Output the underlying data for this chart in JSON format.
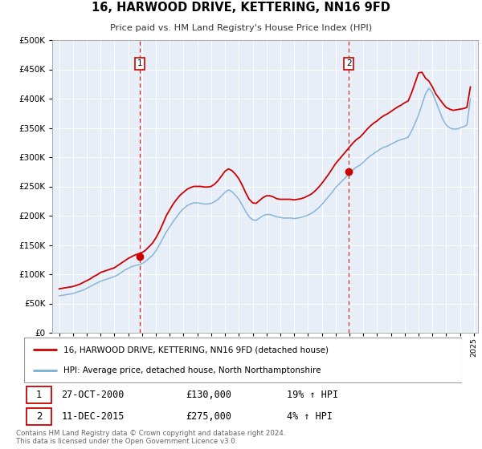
{
  "title": "16, HARWOOD DRIVE, KETTERING, NN16 9FD",
  "subtitle": "Price paid vs. HM Land Registry's House Price Index (HPI)",
  "plot_bg_color": "#e8eef8",
  "red_color": "#cc0000",
  "blue_color": "#7bafd4",
  "legend_label_red": "16, HARWOOD DRIVE, KETTERING, NN16 9FD (detached house)",
  "legend_label_blue": "HPI: Average price, detached house, North Northamptonshire",
  "transaction1_date": "27-OCT-2000",
  "transaction1_price": "£130,000",
  "transaction1_hpi": "19% ↑ HPI",
  "transaction1_year": 2000.83,
  "transaction1_value": 130000,
  "transaction2_date": "11-DEC-2015",
  "transaction2_price": "£275,000",
  "transaction2_hpi": "4% ↑ HPI",
  "transaction2_year": 2015.95,
  "transaction2_value": 275000,
  "footer_line1": "Contains HM Land Registry data © Crown copyright and database right 2024.",
  "footer_line2": "This data is licensed under the Open Government Licence v3.0.",
  "ylim": [
    0,
    500000
  ],
  "yticks": [
    0,
    50000,
    100000,
    150000,
    200000,
    250000,
    300000,
    350000,
    400000,
    450000,
    500000
  ],
  "xlim_start": 1994.5,
  "xlim_end": 2025.3,
  "hpi_data_x": [
    1995.0,
    1995.25,
    1995.5,
    1995.75,
    1996.0,
    1996.25,
    1996.5,
    1996.75,
    1997.0,
    1997.25,
    1997.5,
    1997.75,
    1998.0,
    1998.25,
    1998.5,
    1998.75,
    1999.0,
    1999.25,
    1999.5,
    1999.75,
    2000.0,
    2000.25,
    2000.5,
    2000.75,
    2001.0,
    2001.25,
    2001.5,
    2001.75,
    2002.0,
    2002.25,
    2002.5,
    2002.75,
    2003.0,
    2003.25,
    2003.5,
    2003.75,
    2004.0,
    2004.25,
    2004.5,
    2004.75,
    2005.0,
    2005.25,
    2005.5,
    2005.75,
    2006.0,
    2006.25,
    2006.5,
    2006.75,
    2007.0,
    2007.25,
    2007.5,
    2007.75,
    2008.0,
    2008.25,
    2008.5,
    2008.75,
    2009.0,
    2009.25,
    2009.5,
    2009.75,
    2010.0,
    2010.25,
    2010.5,
    2010.75,
    2011.0,
    2011.25,
    2011.5,
    2011.75,
    2012.0,
    2012.25,
    2012.5,
    2012.75,
    2013.0,
    2013.25,
    2013.5,
    2013.75,
    2014.0,
    2014.25,
    2014.5,
    2014.75,
    2015.0,
    2015.25,
    2015.5,
    2015.75,
    2016.0,
    2016.25,
    2016.5,
    2016.75,
    2017.0,
    2017.25,
    2017.5,
    2017.75,
    2018.0,
    2018.25,
    2018.5,
    2018.75,
    2019.0,
    2019.25,
    2019.5,
    2019.75,
    2020.0,
    2020.25,
    2020.5,
    2020.75,
    2021.0,
    2021.25,
    2021.5,
    2021.75,
    2022.0,
    2022.25,
    2022.5,
    2022.75,
    2023.0,
    2023.25,
    2023.5,
    2023.75,
    2024.0,
    2024.25,
    2024.5,
    2024.75
  ],
  "hpi_data_y": [
    63000,
    64000,
    65000,
    66000,
    67000,
    69000,
    71000,
    73000,
    76000,
    79000,
    82000,
    85000,
    88000,
    90000,
    92000,
    94000,
    96000,
    99000,
    103000,
    107000,
    110000,
    113000,
    115000,
    116000,
    118000,
    122000,
    127000,
    132000,
    140000,
    150000,
    161000,
    172000,
    181000,
    190000,
    198000,
    206000,
    212000,
    217000,
    220000,
    222000,
    222000,
    221000,
    220000,
    220000,
    221000,
    224000,
    228000,
    234000,
    240000,
    244000,
    241000,
    235000,
    228000,
    218000,
    207000,
    198000,
    193000,
    192000,
    196000,
    200000,
    202000,
    202000,
    200000,
    198000,
    197000,
    196000,
    196000,
    196000,
    195000,
    196000,
    197000,
    199000,
    201000,
    204000,
    208000,
    213000,
    219000,
    226000,
    233000,
    240000,
    248000,
    254000,
    260000,
    266000,
    272000,
    278000,
    283000,
    286000,
    291000,
    297000,
    302000,
    306000,
    310000,
    314000,
    317000,
    319000,
    322000,
    325000,
    328000,
    330000,
    332000,
    334000,
    345000,
    358000,
    372000,
    390000,
    408000,
    418000,
    410000,
    395000,
    380000,
    365000,
    355000,
    350000,
    348000,
    348000,
    350000,
    352000,
    355000,
    400000
  ],
  "red_data_x": [
    1995.0,
    1995.25,
    1995.5,
    1995.75,
    1996.0,
    1996.25,
    1996.5,
    1996.75,
    1997.0,
    1997.25,
    1997.5,
    1997.75,
    1998.0,
    1998.25,
    1998.5,
    1998.75,
    1999.0,
    1999.25,
    1999.5,
    1999.75,
    2000.0,
    2000.25,
    2000.5,
    2000.75,
    2001.0,
    2001.25,
    2001.5,
    2001.75,
    2002.0,
    2002.25,
    2002.5,
    2002.75,
    2003.0,
    2003.25,
    2003.5,
    2003.75,
    2004.0,
    2004.25,
    2004.5,
    2004.75,
    2005.0,
    2005.25,
    2005.5,
    2005.75,
    2006.0,
    2006.25,
    2006.5,
    2006.75,
    2007.0,
    2007.25,
    2007.5,
    2007.75,
    2008.0,
    2008.25,
    2008.5,
    2008.75,
    2009.0,
    2009.25,
    2009.5,
    2009.75,
    2010.0,
    2010.25,
    2010.5,
    2010.75,
    2011.0,
    2011.25,
    2011.5,
    2011.75,
    2012.0,
    2012.25,
    2012.5,
    2012.75,
    2013.0,
    2013.25,
    2013.5,
    2013.75,
    2014.0,
    2014.25,
    2014.5,
    2014.75,
    2015.0,
    2015.25,
    2015.5,
    2015.75,
    2016.0,
    2016.25,
    2016.5,
    2016.75,
    2017.0,
    2017.25,
    2017.5,
    2017.75,
    2018.0,
    2018.25,
    2018.5,
    2018.75,
    2019.0,
    2019.25,
    2019.5,
    2019.75,
    2020.0,
    2020.25,
    2020.5,
    2020.75,
    2021.0,
    2021.25,
    2021.5,
    2021.75,
    2022.0,
    2022.25,
    2022.5,
    2022.75,
    2023.0,
    2023.25,
    2023.5,
    2023.75,
    2024.0,
    2024.25,
    2024.5,
    2024.75
  ],
  "red_data_y": [
    75000,
    76000,
    77000,
    78000,
    79000,
    81000,
    83000,
    86000,
    89000,
    92000,
    96000,
    99000,
    103000,
    105000,
    107000,
    109000,
    111000,
    115000,
    119000,
    123000,
    127000,
    130000,
    133000,
    135000,
    137000,
    141000,
    147000,
    153000,
    162000,
    173000,
    186000,
    200000,
    210000,
    220000,
    228000,
    235000,
    240000,
    245000,
    248000,
    250000,
    250000,
    250000,
    249000,
    249000,
    250000,
    254000,
    260000,
    268000,
    276000,
    280000,
    277000,
    271000,
    263000,
    252000,
    239000,
    228000,
    222000,
    221000,
    226000,
    231000,
    234000,
    234000,
    232000,
    229000,
    228000,
    228000,
    228000,
    228000,
    227000,
    228000,
    229000,
    231000,
    234000,
    237000,
    242000,
    248000,
    255000,
    263000,
    271000,
    280000,
    289000,
    296000,
    303000,
    310000,
    317000,
    324000,
    330000,
    334000,
    340000,
    347000,
    353000,
    358000,
    362000,
    367000,
    371000,
    374000,
    378000,
    382000,
    386000,
    389000,
    393000,
    396000,
    410000,
    427000,
    444000,
    445000,
    435000,
    430000,
    420000,
    408000,
    400000,
    392000,
    385000,
    382000,
    380000,
    381000,
    382000,
    383000,
    385000,
    420000
  ]
}
